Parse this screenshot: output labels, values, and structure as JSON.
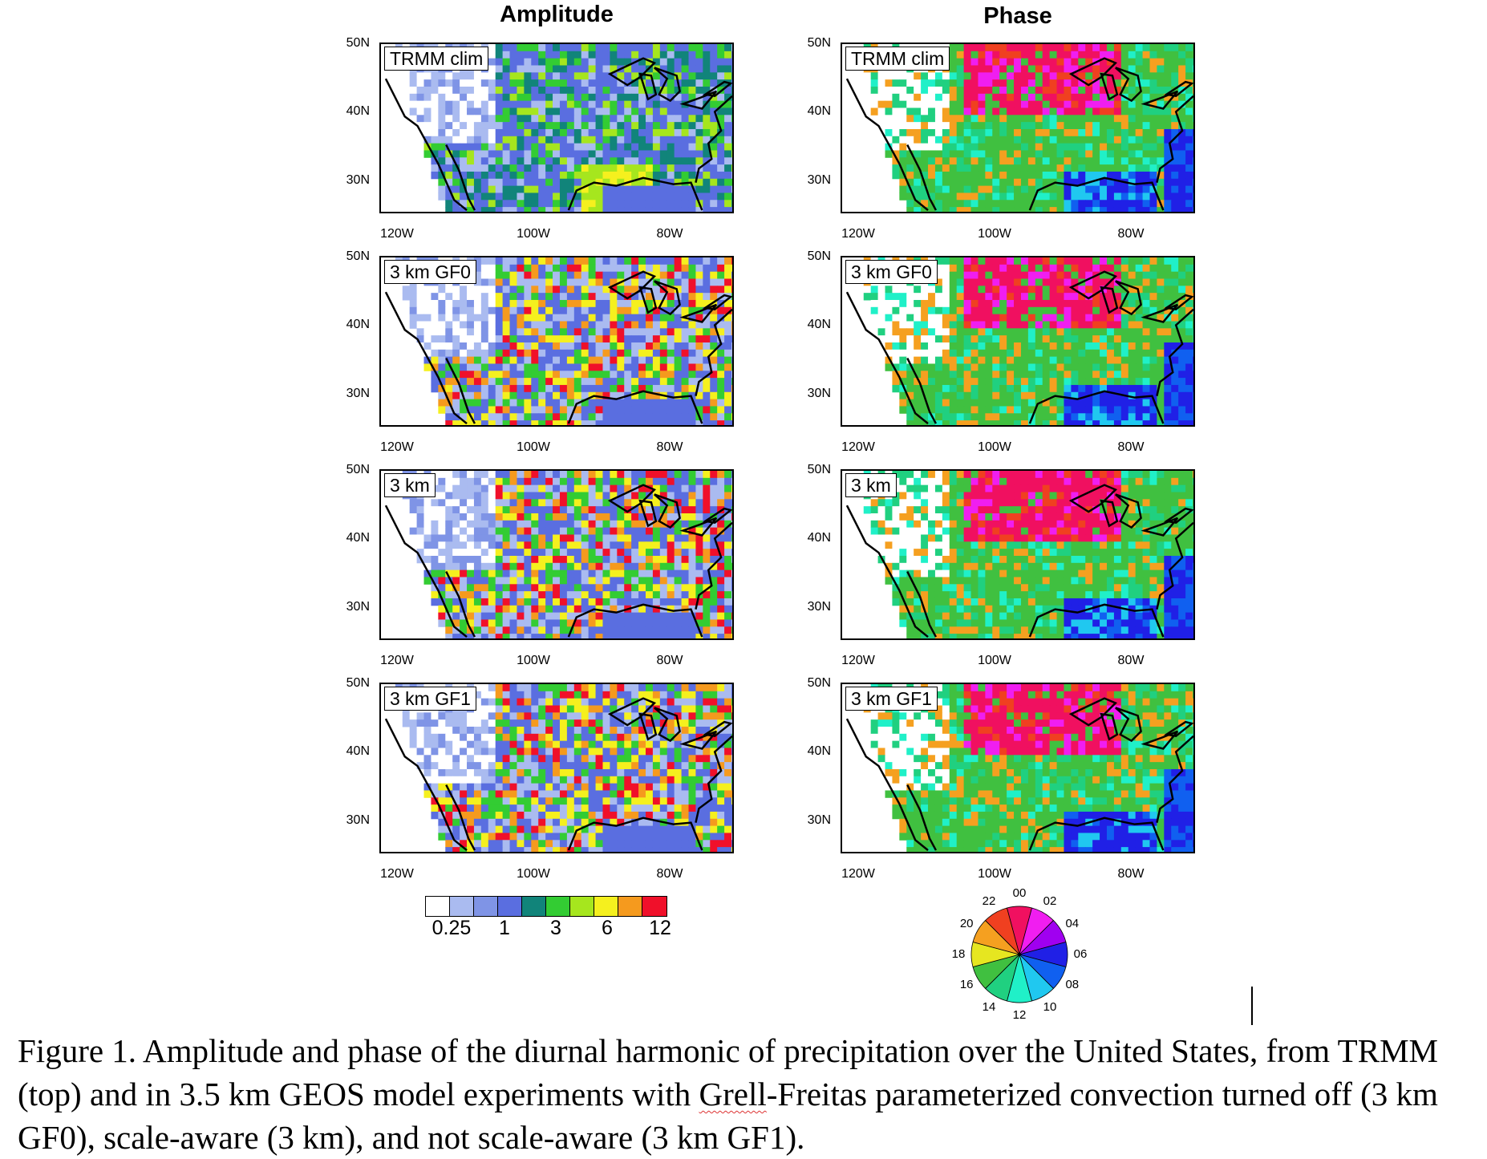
{
  "figure": {
    "columns": [
      {
        "title": "Amplitude"
      },
      {
        "title": "Phase"
      }
    ],
    "rows": [
      {
        "label": "TRMM clim"
      },
      {
        "label": "3 km GF0"
      },
      {
        "label": "3 km"
      },
      {
        "label": "3 km GF1"
      }
    ],
    "lat_ticks": [
      "50N",
      "40N",
      "30N"
    ],
    "lon_ticks": [
      "120W",
      "100W",
      "80W"
    ],
    "amplitude_colorbar": {
      "colors": [
        "#ffffff",
        "#aabbf0",
        "#7f94e6",
        "#5a6ee0",
        "#11847a",
        "#33cc33",
        "#a6e61e",
        "#f5f01e",
        "#f59a1e",
        "#f0102a"
      ],
      "labels": [
        "0.25",
        "1",
        "3",
        "6",
        "12"
      ]
    },
    "phase_wheel": {
      "labels": [
        "00",
        "02",
        "04",
        "06",
        "08",
        "10",
        "12",
        "14",
        "16",
        "18",
        "20",
        "22"
      ],
      "colors": [
        "#f01060",
        "#f01ef0",
        "#a000f0",
        "#2020e6",
        "#1060f0",
        "#20c8f0",
        "#20f0c8",
        "#20d080",
        "#40c040",
        "#e6e620",
        "#f5a020",
        "#f04020"
      ]
    }
  },
  "caption": {
    "part1": "Figure 1. Amplitude and phase of the diurnal harmonic of precipitation over the United States, from TRMM (top) and in 3.5 km GEOS model experiments with ",
    "squiggle": "Grell",
    "part2": "-Freitas parameterized convection turned off (3 km GF0), scale-aware (3 km), and not scale-aware (3 km GF1)."
  }
}
